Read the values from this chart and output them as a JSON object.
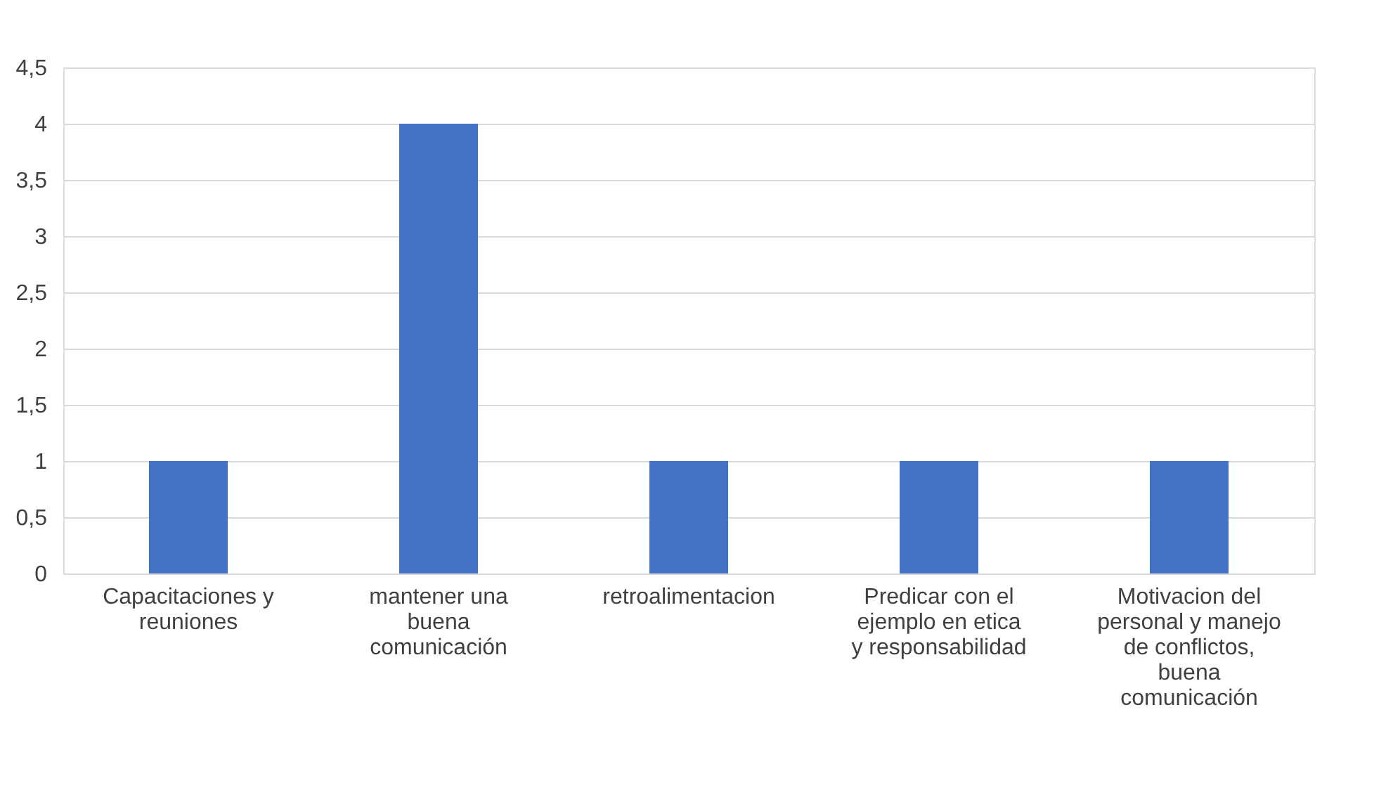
{
  "chart_data": {
    "type": "bar",
    "categories": [
      "Capacitaciones y reuniones",
      "mantener una buena comunicación",
      "retroalimentacion",
      "Predicar con el ejemplo en etica y responsabilidad",
      "Motivacion del personal y manejo de conflictos, buena comunicación"
    ],
    "values": [
      1,
      4,
      1,
      1,
      1
    ],
    "color": "#4472c4",
    "ylim": [
      0,
      4.5
    ],
    "yticks": [
      0,
      {
        "value": 0.5,
        "label": "0,5"
      },
      1,
      {
        "value": 1.5,
        "label": "1,5"
      },
      2,
      {
        "value": 2.5,
        "label": "2,5"
      },
      3,
      {
        "value": 3.5,
        "label": "3,5"
      },
      4,
      {
        "value": 4.5,
        "label": "4,5"
      }
    ],
    "grid": "y"
  }
}
